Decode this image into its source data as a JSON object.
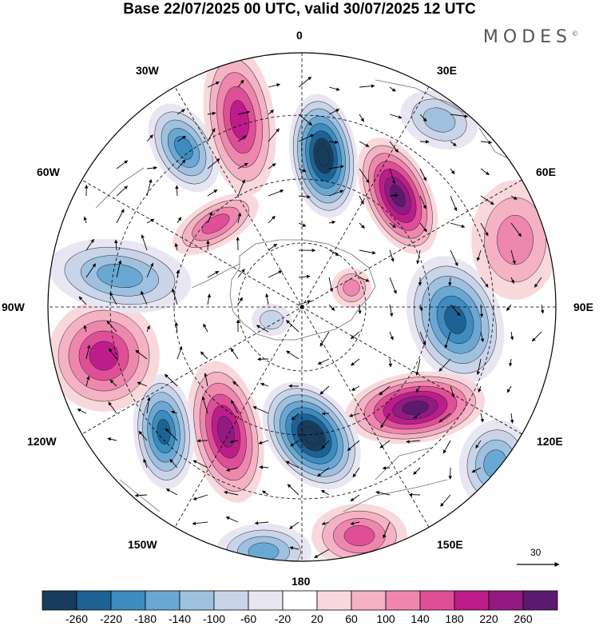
{
  "title": "Base 22/07/2025 00 UTC, valid 30/07/2025 12 UTC",
  "brand": "MODES",
  "brand_mark": "©",
  "longitudes": [
    "0",
    "30E",
    "60E",
    "90E",
    "120E",
    "150E",
    "180",
    "150W",
    "120W",
    "90W",
    "60W",
    "30W"
  ],
  "colorbar": {
    "colors": [
      "#173c5e",
      "#1d6294",
      "#3d8bbf",
      "#6aa8d3",
      "#9fc1e0",
      "#c9d4e8",
      "#e8e6f2",
      "#ffffff",
      "#f9d8dc",
      "#f4b2c4",
      "#ee87ad",
      "#df4f98",
      "#bd1d8a",
      "#921a82",
      "#5c1a6e"
    ],
    "ticks": [
      "-260",
      "-220",
      "-180",
      "-140",
      "-100",
      "-60",
      "-20",
      "20",
      "60",
      "100",
      "140",
      "180",
      "220",
      "260"
    ]
  },
  "reference_vector": "30"
}
